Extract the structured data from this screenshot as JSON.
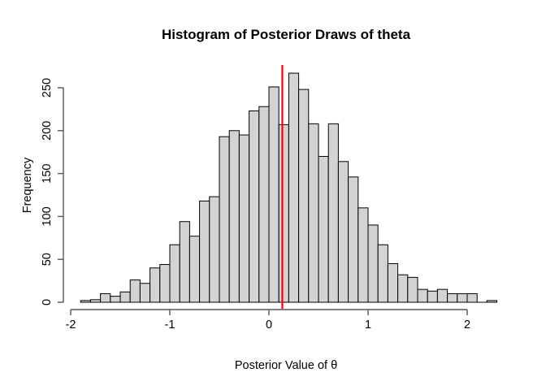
{
  "chart_data": {
    "type": "bar",
    "subtype": "histogram",
    "title": "Histogram of Posterior Draws of theta",
    "xlabel": "Posterior Value of θ",
    "ylabel": "Frequency",
    "bin_start": -1.9,
    "bin_width": 0.1,
    "counts": [
      2,
      3,
      10,
      7,
      12,
      26,
      22,
      40,
      44,
      67,
      94,
      77,
      118,
      123,
      193,
      200,
      195,
      223,
      228,
      251,
      207,
      267,
      248,
      208,
      170,
      208,
      164,
      146,
      110,
      90,
      67,
      45,
      32,
      29,
      15,
      13,
      15,
      10,
      10,
      10,
      0,
      2
    ],
    "x_ticks": [
      "-2",
      "-1",
      "0",
      "1",
      "2"
    ],
    "x_tick_values": [
      -2,
      -1,
      0,
      1,
      2
    ],
    "y_ticks": [
      "0",
      "50",
      "100",
      "150",
      "200",
      "250"
    ],
    "y_tick_values": [
      0,
      50,
      100,
      150,
      200,
      250
    ],
    "xlim": [
      -2.05,
      2.35
    ],
    "ylim": [
      0,
      272
    ],
    "grid": false,
    "legend": null,
    "vline": {
      "x": 0.135,
      "color": "#FF0000",
      "line_width": 2.2
    },
    "bar_fill": "#D3D3D3",
    "bar_border": "#000000",
    "axis_color": "#555555",
    "text_color": "#000000",
    "background": "#FFFFFF"
  }
}
